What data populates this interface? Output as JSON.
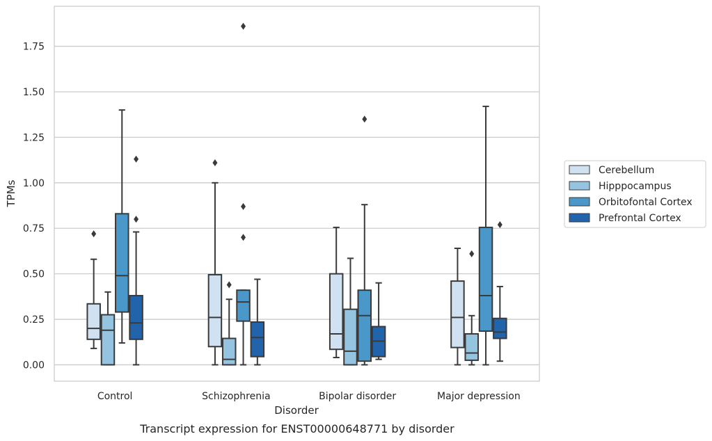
{
  "caption": "Transcript expression for ENST00000648771 by disorder",
  "chart_data": {
    "type": "box",
    "xlabel": "Disorder",
    "ylabel": "TPMs",
    "ylim": [
      -0.09,
      1.97
    ],
    "yticks": [
      "0.00",
      "0.25",
      "0.50",
      "0.75",
      "1.00",
      "1.25",
      "1.50",
      "1.75"
    ],
    "ytick_values": [
      0,
      0.25,
      0.5,
      0.75,
      1.0,
      1.25,
      1.5,
      1.75
    ],
    "grid": "horizontal",
    "legend_position": "right",
    "categories": [
      "Control",
      "Schizophrenia",
      "Bipolar disorder",
      "Major depression"
    ],
    "series": [
      {
        "name": "Cerebellum",
        "color": "#d0e1f2",
        "boxes": [
          {
            "whislo": 0.09,
            "q1": 0.14,
            "med": 0.2,
            "q3": 0.335,
            "whishi": 0.58,
            "fliers": [
              0.72
            ]
          },
          {
            "whislo": 0.0,
            "q1": 0.1,
            "med": 0.26,
            "q3": 0.495,
            "whishi": 1.0,
            "fliers": [
              1.11
            ]
          },
          {
            "whislo": 0.04,
            "q1": 0.085,
            "med": 0.17,
            "q3": 0.5,
            "whishi": 0.755,
            "fliers": []
          },
          {
            "whislo": 0.0,
            "q1": 0.095,
            "med": 0.26,
            "q3": 0.46,
            "whishi": 0.64,
            "fliers": []
          }
        ]
      },
      {
        "name": "Hipppocampus",
        "color": "#94c4df",
        "boxes": [
          {
            "whislo": 0.0,
            "q1": 0.0,
            "med": 0.19,
            "q3": 0.275,
            "whishi": 0.4,
            "fliers": []
          },
          {
            "whislo": 0.0,
            "q1": 0.0,
            "med": 0.03,
            "q3": 0.145,
            "whishi": 0.36,
            "fliers": [
              0.44
            ]
          },
          {
            "whislo": 0.0,
            "q1": 0.0,
            "med": 0.075,
            "q3": 0.305,
            "whishi": 0.585,
            "fliers": []
          },
          {
            "whislo": 0.0,
            "q1": 0.025,
            "med": 0.065,
            "q3": 0.17,
            "whishi": 0.27,
            "fliers": [
              0.61
            ]
          }
        ]
      },
      {
        "name": "Orbitofontal Cortex",
        "color": "#4a98c9",
        "boxes": [
          {
            "whislo": 0.12,
            "q1": 0.29,
            "med": 0.49,
            "q3": 0.83,
            "whishi": 1.4,
            "fliers": []
          },
          {
            "whislo": 0.0,
            "q1": 0.24,
            "med": 0.345,
            "q3": 0.41,
            "whishi": 0.41,
            "fliers": [
              0.7,
              0.87,
              1.86
            ]
          },
          {
            "whislo": 0.0,
            "q1": 0.02,
            "med": 0.27,
            "q3": 0.41,
            "whishi": 0.88,
            "fliers": [
              1.35
            ]
          },
          {
            "whislo": 0.0,
            "q1": 0.185,
            "med": 0.38,
            "q3": 0.755,
            "whishi": 1.42,
            "fliers": []
          }
        ]
      },
      {
        "name": "Prefrontal Cortex",
        "color": "#2164ab",
        "boxes": [
          {
            "whislo": 0.0,
            "q1": 0.14,
            "med": 0.23,
            "q3": 0.38,
            "whishi": 0.73,
            "fliers": [
              0.8,
              1.13
            ]
          },
          {
            "whislo": 0.0,
            "q1": 0.045,
            "med": 0.15,
            "q3": 0.235,
            "whishi": 0.47,
            "fliers": []
          },
          {
            "whislo": 0.03,
            "q1": 0.045,
            "med": 0.13,
            "q3": 0.21,
            "whishi": 0.45,
            "fliers": []
          },
          {
            "whislo": 0.02,
            "q1": 0.145,
            "med": 0.18,
            "q3": 0.255,
            "whishi": 0.43,
            "fliers": [
              0.77
            ]
          }
        ]
      }
    ]
  }
}
